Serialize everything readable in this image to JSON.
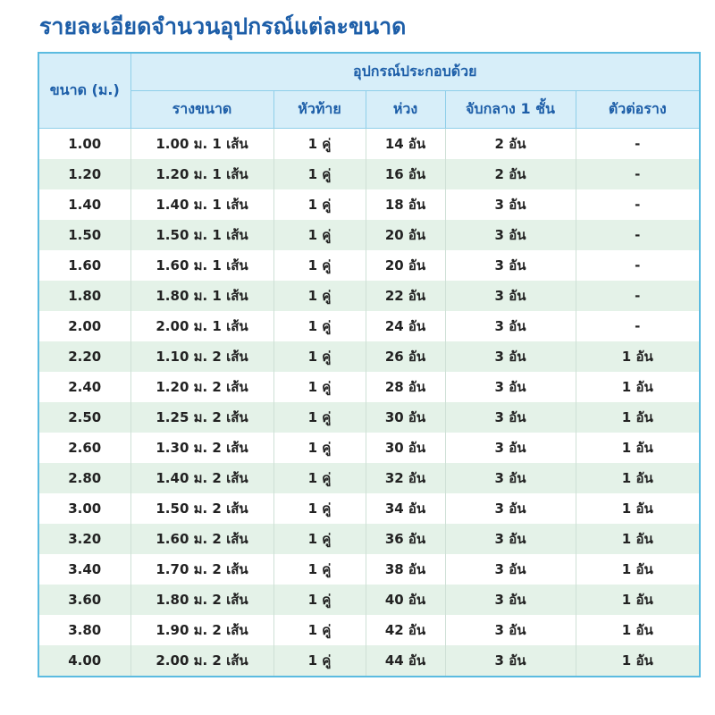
{
  "title": "รายละเอียดจำนวนอุปกรณ์แต่ละขนาด",
  "table": {
    "header": {
      "size": "ขนาด (ม.)",
      "group": "อุปกรณ์ประกอบด้วย",
      "columns": [
        "รางขนาด",
        "หัวท้าย",
        "ห่วง",
        "จับกลาง 1 ชั้น",
        "ตัวต่อราง"
      ]
    },
    "rows": [
      [
        "1.00",
        "1.00 ม. 1 เส้น",
        "1 คู่",
        "14 อัน",
        "2 อัน",
        "-"
      ],
      [
        "1.20",
        "1.20 ม. 1 เส้น",
        "1 คู่",
        "16 อัน",
        "2 อัน",
        "-"
      ],
      [
        "1.40",
        "1.40 ม. 1 เส้น",
        "1 คู่",
        "18 อัน",
        "3 อัน",
        "-"
      ],
      [
        "1.50",
        "1.50 ม. 1 เส้น",
        "1 คู่",
        "20 อัน",
        "3 อัน",
        "-"
      ],
      [
        "1.60",
        "1.60 ม. 1 เส้น",
        "1 คู่",
        "20 อัน",
        "3 อัน",
        "-"
      ],
      [
        "1.80",
        "1.80 ม. 1 เส้น",
        "1 คู่",
        "22 อัน",
        "3 อัน",
        "-"
      ],
      [
        "2.00",
        "2.00 ม. 1 เส้น",
        "1 คู่",
        "24 อัน",
        "3 อัน",
        "-"
      ],
      [
        "2.20",
        "1.10 ม. 2 เส้น",
        "1 คู่",
        "26 อัน",
        "3 อัน",
        "1 อัน"
      ],
      [
        "2.40",
        "1.20 ม. 2 เส้น",
        "1 คู่",
        "28 อัน",
        "3 อัน",
        "1 อัน"
      ],
      [
        "2.50",
        "1.25 ม. 2 เส้น",
        "1 คู่",
        "30 อัน",
        "3 อัน",
        "1 อัน"
      ],
      [
        "2.60",
        "1.30 ม. 2 เส้น",
        "1 คู่",
        "30 อัน",
        "3 อัน",
        "1 อัน"
      ],
      [
        "2.80",
        "1.40 ม. 2 เส้น",
        "1 คู่",
        "32 อัน",
        "3 อัน",
        "1 อัน"
      ],
      [
        "3.00",
        "1.50 ม. 2 เส้น",
        "1 คู่",
        "34 อัน",
        "3 อัน",
        "1 อัน"
      ],
      [
        "3.20",
        "1.60 ม. 2 เส้น",
        "1 คู่",
        "36 อัน",
        "3 อัน",
        "1 อัน"
      ],
      [
        "3.40",
        "1.70 ม. 2 เส้น",
        "1 คู่",
        "38 อัน",
        "3 อัน",
        "1 อัน"
      ],
      [
        "3.60",
        "1.80 ม. 2 เส้น",
        "1 คู่",
        "40 อัน",
        "3 อัน",
        "1 อัน"
      ],
      [
        "3.80",
        "1.90 ม. 2 เส้น",
        "1 คู่",
        "42 อัน",
        "3 อัน",
        "1 อัน"
      ],
      [
        "4.00",
        "2.00 ม. 2 เส้น",
        "1 คู่",
        "44 อัน",
        "3 อัน",
        "1 อัน"
      ]
    ]
  }
}
